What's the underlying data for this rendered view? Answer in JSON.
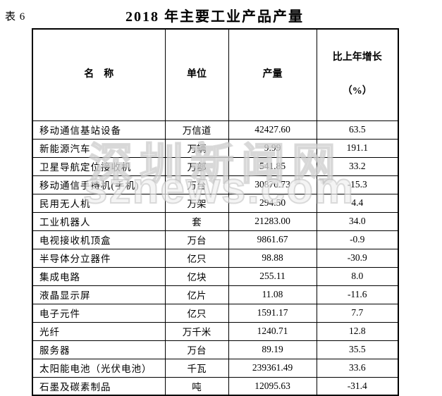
{
  "page": {
    "table_label": "表 6",
    "title": "2018 年主要工业产品产量"
  },
  "watermark": {
    "line1": "深圳新闻网",
    "line2": "sznews.com"
  },
  "colors": {
    "text": "#000000",
    "border": "#000000",
    "background": "#ffffff",
    "watermark": "#bebebe"
  },
  "table": {
    "headers": {
      "name": "名　称",
      "unit": "单位",
      "output": "产量",
      "growth_line1": "比上年增长",
      "growth_line2": "（%）"
    },
    "rows": [
      {
        "name": "移动通信基站设备",
        "unit": "万信道",
        "output": "42427.60",
        "growth": "63.5"
      },
      {
        "name": "新能源汽车",
        "unit": "万辆",
        "output": "9.99",
        "growth": "191.1"
      },
      {
        "name": "卫星导航定位接收机",
        "unit": "万部",
        "output": "541.85",
        "growth": "33.2"
      },
      {
        "name": "移动通信手持机(手机)",
        "unit": "万台",
        "output": "30870.73",
        "growth": "-15.3"
      },
      {
        "name": "民用无人机",
        "unit": "万架",
        "output": "294.50",
        "growth": "4.4"
      },
      {
        "name": "工业机器人",
        "unit": "套",
        "output": "21283.00",
        "growth": "34.0"
      },
      {
        "name": "电视接收机顶盒",
        "unit": "万台",
        "output": "9861.67",
        "growth": "-0.9"
      },
      {
        "name": "半导体分立器件",
        "unit": "亿只",
        "output": "98.88",
        "growth": "-30.9"
      },
      {
        "name": "集成电路",
        "unit": "亿块",
        "output": "255.11",
        "growth": "8.0"
      },
      {
        "name": "液晶显示屏",
        "unit": "亿片",
        "output": "11.08",
        "growth": "-11.6"
      },
      {
        "name": "电子元件",
        "unit": "亿只",
        "output": "1591.17",
        "growth": "7.7"
      },
      {
        "name": "光纤",
        "unit": "万千米",
        "output": "1240.71",
        "growth": "12.8"
      },
      {
        "name": "服务器",
        "unit": "万台",
        "output": "89.19",
        "growth": "35.5"
      },
      {
        "name": "太阳能电池（光伏电池）",
        "unit": "千瓦",
        "output": "239361.49",
        "growth": "33.6"
      },
      {
        "name": "石墨及碳素制品",
        "unit": "吨",
        "output": "12095.63",
        "growth": "-31.4"
      }
    ]
  }
}
